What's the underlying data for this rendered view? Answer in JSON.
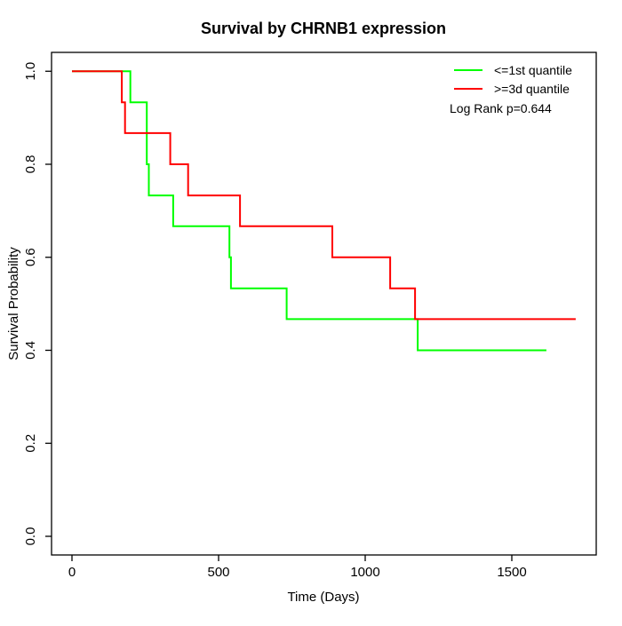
{
  "title": "Survival by CHRNB1 expression",
  "chart_data": {
    "type": "line",
    "subtype": "kaplan-meier-step",
    "title": "Survival by CHRNB1 expression",
    "xlabel": "Time (Days)",
    "ylabel": "Survival Probability",
    "xlim": [
      0,
      1718
    ],
    "ylim": [
      0.0,
      1.0
    ],
    "x_ticks": [
      0,
      500,
      1000,
      1500
    ],
    "x_tick_labels": [
      "0",
      "500",
      "1000",
      "1500"
    ],
    "y_ticks": [
      0.0,
      0.2,
      0.4,
      0.6,
      0.8,
      1.0
    ],
    "y_tick_labels": [
      "0.0",
      "0.2",
      "0.4",
      "0.6",
      "0.8",
      "1.0"
    ],
    "grid": false,
    "frame_box": true,
    "legend_position": "top-right",
    "annotation": "Log Rank p=0.644",
    "series": [
      {
        "name": "<=1st quantile",
        "color": "#00ff00",
        "steps": [
          [
            0,
            1.0
          ],
          [
            199,
            0.933
          ],
          [
            255,
            0.8
          ],
          [
            262,
            0.733
          ],
          [
            345,
            0.667
          ],
          [
            537,
            0.6
          ],
          [
            542,
            0.533
          ],
          [
            732,
            0.467
          ],
          [
            1179,
            0.4
          ]
        ],
        "end_time": 1618
      },
      {
        "name": ">=3d quantile",
        "color": "#ff0000",
        "steps": [
          [
            0,
            1.0
          ],
          [
            170,
            0.933
          ],
          [
            181,
            0.867
          ],
          [
            335,
            0.8
          ],
          [
            396,
            0.733
          ],
          [
            573,
            0.667
          ],
          [
            888,
            0.6
          ],
          [
            1085,
            0.533
          ],
          [
            1170,
            0.467
          ]
        ],
        "end_time": 1718
      }
    ]
  },
  "colors": {
    "background": "#ffffff",
    "axis": "#000000",
    "series_low": "#00ff00",
    "series_high": "#ff0000"
  }
}
